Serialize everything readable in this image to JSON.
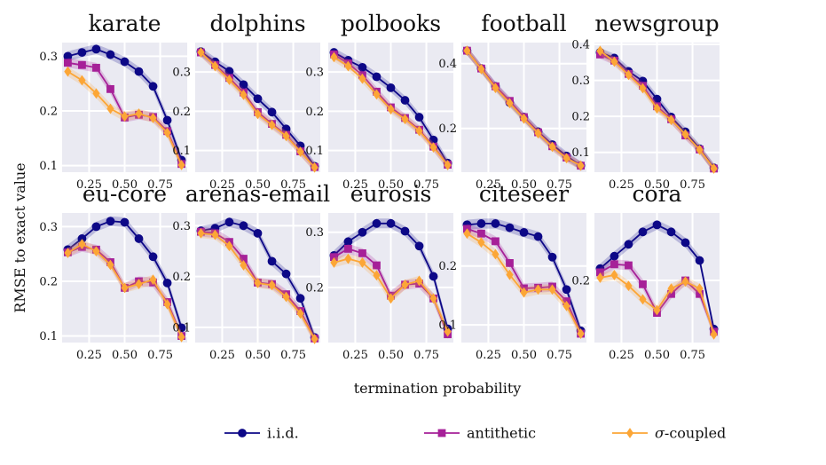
{
  "chart_data": {
    "type": "line",
    "xlabel": "termination probability",
    "ylabel": "RMSE to exact value",
    "x": [
      0.1,
      0.2,
      0.3,
      0.4,
      0.5,
      0.6,
      0.7,
      0.8,
      0.9
    ],
    "xticks": [
      0.25,
      0.5,
      0.75
    ],
    "xtick_labels": [
      "0.25",
      "0.50",
      "0.75"
    ],
    "grid": true,
    "legend_position": "bottom-center",
    "legend": [
      {
        "key": "iid",
        "label": "i.i.d.",
        "color": "#0d0887",
        "marker": "circle"
      },
      {
        "key": "anti",
        "label": "antithetic",
        "color": "#a62098",
        "marker": "square"
      },
      {
        "key": "sigma",
        "label": "σ-coupled",
        "color": "#fca636",
        "marker": "diamond"
      }
    ],
    "panels": [
      {
        "title": "karate",
        "ylim": [
          0.088,
          0.325
        ],
        "yticks": [
          0.1,
          0.2,
          0.3
        ],
        "ytick_labels": [
          "0.1",
          "0.2",
          "0.3"
        ],
        "series": {
          "iid": [
            0.3,
            0.307,
            0.313,
            0.303,
            0.29,
            0.272,
            0.245,
            0.183,
            0.11
          ],
          "anti": [
            0.288,
            0.284,
            0.279,
            0.24,
            0.188,
            0.193,
            0.189,
            0.163,
            0.103
          ],
          "sigma": [
            0.272,
            0.256,
            0.232,
            0.204,
            0.19,
            0.195,
            0.187,
            0.16,
            0.101
          ]
        }
      },
      {
        "title": "dolphins",
        "ylim": [
          0.045,
          0.375
        ],
        "yticks": [
          0.1,
          0.2,
          0.3
        ],
        "ytick_labels": [
          "0.1",
          "0.2",
          "0.3"
        ],
        "series": {
          "iid": [
            0.352,
            0.326,
            0.302,
            0.268,
            0.232,
            0.198,
            0.155,
            0.112,
            0.06
          ],
          "anti": [
            0.35,
            0.318,
            0.285,
            0.248,
            0.198,
            0.168,
            0.14,
            0.098,
            0.058
          ],
          "sigma": [
            0.35,
            0.315,
            0.28,
            0.242,
            0.193,
            0.165,
            0.137,
            0.097,
            0.057
          ]
        }
      },
      {
        "title": "polbooks",
        "ylim": [
          0.045,
          0.375
        ],
        "yticks": [
          0.1,
          0.2,
          0.3
        ],
        "ytick_labels": [
          "0.1",
          "0.2",
          "0.3"
        ],
        "series": {
          "iid": [
            0.35,
            0.33,
            0.312,
            0.288,
            0.26,
            0.228,
            0.185,
            0.127,
            0.068
          ],
          "anti": [
            0.345,
            0.322,
            0.292,
            0.25,
            0.21,
            0.183,
            0.153,
            0.11,
            0.064
          ],
          "sigma": [
            0.338,
            0.315,
            0.283,
            0.243,
            0.205,
            0.18,
            0.15,
            0.108,
            0.063
          ]
        }
      },
      {
        "title": "football",
        "ylim": [
          0.065,
          0.465
        ],
        "yticks": [
          0.2,
          0.4
        ],
        "ytick_labels": [
          "0.2",
          "0.4"
        ],
        "series": {
          "iid": [
            0.44,
            0.385,
            0.33,
            0.28,
            0.235,
            0.19,
            0.15,
            0.115,
            0.085
          ],
          "anti": [
            0.44,
            0.385,
            0.33,
            0.285,
            0.235,
            0.188,
            0.145,
            0.11,
            0.085
          ],
          "sigma": [
            0.44,
            0.383,
            0.325,
            0.278,
            0.23,
            0.185,
            0.143,
            0.108,
            0.085
          ]
        }
      },
      {
        "title": "newsgroup",
        "ylim": [
          0.045,
          0.405
        ],
        "yticks": [
          0.1,
          0.2,
          0.3,
          0.4
        ],
        "ytick_labels": [
          "0.1",
          "0.2",
          "0.3",
          "0.4"
        ],
        "series": {
          "iid": [
            0.378,
            0.362,
            0.325,
            0.298,
            0.248,
            0.198,
            0.157,
            0.11,
            0.057
          ],
          "anti": [
            0.372,
            0.355,
            0.318,
            0.285,
            0.228,
            0.192,
            0.147,
            0.108,
            0.055
          ],
          "sigma": [
            0.382,
            0.352,
            0.315,
            0.278,
            0.222,
            0.19,
            0.15,
            0.107,
            0.055
          ]
        }
      },
      {
        "title": "eu-core",
        "ylim": [
          0.088,
          0.325
        ],
        "yticks": [
          0.1,
          0.2,
          0.3
        ],
        "ytick_labels": [
          "0.1",
          "0.2",
          "0.3"
        ],
        "series": {
          "iid": [
            0.258,
            0.278,
            0.3,
            0.31,
            0.308,
            0.278,
            0.245,
            0.197,
            0.115
          ],
          "anti": [
            0.253,
            0.263,
            0.258,
            0.235,
            0.188,
            0.2,
            0.198,
            0.162,
            0.1
          ],
          "sigma": [
            0.252,
            0.268,
            0.255,
            0.23,
            0.188,
            0.195,
            0.203,
            0.158,
            0.098
          ]
        }
      },
      {
        "title": "arenas-email",
        "ylim": [
          0.07,
          0.325
        ],
        "yticks": [
          0.1,
          0.2,
          0.3
        ],
        "ytick_labels": [
          "0.1",
          "0.2",
          "0.3"
        ],
        "series": {
          "iid": [
            0.29,
            0.295,
            0.307,
            0.3,
            0.285,
            0.23,
            0.205,
            0.157,
            0.08
          ],
          "anti": [
            0.288,
            0.285,
            0.268,
            0.235,
            0.188,
            0.185,
            0.165,
            0.132,
            0.078
          ],
          "sigma": [
            0.285,
            0.282,
            0.26,
            0.222,
            0.187,
            0.183,
            0.16,
            0.127,
            0.077
          ]
        }
      },
      {
        "title": "eurosis",
        "ylim": [
          0.1,
          0.335
        ],
        "yticks": [
          0.2,
          0.3
        ],
        "ytick_labels": [
          "0.2",
          "0.3"
        ],
        "series": {
          "iid": [
            0.258,
            0.283,
            0.3,
            0.316,
            0.316,
            0.302,
            0.275,
            0.22,
            0.125
          ],
          "anti": [
            0.255,
            0.27,
            0.262,
            0.24,
            0.185,
            0.205,
            0.207,
            0.18,
            0.115
          ],
          "sigma": [
            0.245,
            0.252,
            0.245,
            0.222,
            0.18,
            0.205,
            0.212,
            0.18,
            0.12
          ]
        }
      },
      {
        "title": "citeseer",
        "ylim": [
          0.07,
          0.29
        ],
        "yticks": [
          0.1,
          0.2
        ],
        "ytick_labels": [
          "0.1",
          "0.2"
        ],
        "series": {
          "iid": [
            0.27,
            0.272,
            0.272,
            0.265,
            0.257,
            0.25,
            0.215,
            0.16,
            0.09
          ],
          "anti": [
            0.263,
            0.255,
            0.242,
            0.205,
            0.162,
            0.163,
            0.165,
            0.14,
            0.085
          ],
          "sigma": [
            0.255,
            0.24,
            0.22,
            0.185,
            0.155,
            0.16,
            0.16,
            0.132,
            0.085
          ]
        }
      },
      {
        "title": "cora",
        "ylim": [
          0.085,
          0.325
        ],
        "yticks": [
          0.2
        ],
        "ytick_labels": [
          "0.2"
        ],
        "series": {
          "iid": [
            0.222,
            0.245,
            0.267,
            0.29,
            0.303,
            0.29,
            0.27,
            0.237,
            0.11
          ],
          "anti": [
            0.215,
            0.23,
            0.228,
            0.193,
            0.14,
            0.175,
            0.2,
            0.175,
            0.105
          ],
          "sigma": [
            0.205,
            0.21,
            0.19,
            0.165,
            0.145,
            0.185,
            0.198,
            0.185,
            0.1
          ]
        }
      }
    ]
  }
}
